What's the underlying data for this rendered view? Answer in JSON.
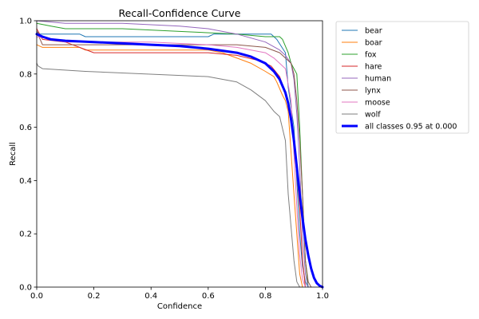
{
  "chart_data": {
    "type": "line",
    "title": "Recall-Confidence Curve",
    "xlabel": "Confidence",
    "ylabel": "Recall",
    "xlim": [
      0.0,
      1.0
    ],
    "ylim": [
      0.0,
      1.0
    ],
    "xticks": [
      "0.0",
      "0.2",
      "0.4",
      "0.6",
      "0.8",
      "1.0"
    ],
    "yticks": [
      "0.0",
      "0.2",
      "0.4",
      "0.6",
      "0.8",
      "1.0"
    ],
    "grid": false,
    "legend_position": "outside-right",
    "series": [
      {
        "name": "bear",
        "color": "#1f77b4",
        "width": 1,
        "x": [
          0,
          0.01,
          0.15,
          0.17,
          0.6,
          0.62,
          0.82,
          0.84,
          0.87,
          0.88,
          0.9,
          0.91,
          0.92,
          0.93,
          0.94,
          0.95
        ],
        "y": [
          0.96,
          0.95,
          0.95,
          0.94,
          0.94,
          0.95,
          0.95,
          0.93,
          0.88,
          0.75,
          0.6,
          0.4,
          0.2,
          0.08,
          0.02,
          0
        ]
      },
      {
        "name": "boar",
        "color": "#ff7f0e",
        "width": 1,
        "x": [
          0,
          0.02,
          0.15,
          0.17,
          0.6,
          0.65,
          0.75,
          0.8,
          0.83,
          0.84,
          0.86,
          0.87,
          0.88,
          0.9,
          0.91,
          0.92,
          0.93
        ],
        "y": [
          0.91,
          0.9,
          0.9,
          0.89,
          0.89,
          0.88,
          0.84,
          0.81,
          0.79,
          0.77,
          0.72,
          0.7,
          0.66,
          0.35,
          0.2,
          0.05,
          0
        ]
      },
      {
        "name": "fox",
        "color": "#2ca02c",
        "width": 1,
        "x": [
          0,
          0.05,
          0.1,
          0.3,
          0.5,
          0.7,
          0.8,
          0.85,
          0.86,
          0.88,
          0.89,
          0.9,
          0.91,
          0.92,
          0.93,
          0.94,
          0.95
        ],
        "y": [
          0.99,
          0.98,
          0.97,
          0.97,
          0.96,
          0.95,
          0.94,
          0.94,
          0.93,
          0.88,
          0.84,
          0.82,
          0.8,
          0.6,
          0.35,
          0.1,
          0
        ]
      },
      {
        "name": "hare",
        "color": "#d62728",
        "width": 1,
        "x": [
          0,
          0.02,
          0.1,
          0.2,
          0.6,
          0.7,
          0.78,
          0.82,
          0.85,
          0.87,
          0.88,
          0.9,
          0.92,
          0.93,
          0.94
        ],
        "y": [
          0.97,
          0.93,
          0.92,
          0.88,
          0.88,
          0.87,
          0.85,
          0.83,
          0.79,
          0.73,
          0.68,
          0.55,
          0.3,
          0.1,
          0
        ]
      },
      {
        "name": "human",
        "color": "#9467bd",
        "width": 1,
        "x": [
          0,
          0.1,
          0.3,
          0.5,
          0.6,
          0.7,
          0.8,
          0.85,
          0.87,
          0.89,
          0.9,
          0.91,
          0.92,
          0.93,
          0.94,
          0.95
        ],
        "y": [
          1.0,
          0.99,
          0.99,
          0.98,
          0.97,
          0.95,
          0.92,
          0.89,
          0.87,
          0.84,
          0.78,
          0.65,
          0.45,
          0.2,
          0.05,
          0
        ]
      },
      {
        "name": "lynx",
        "color": "#8c564b",
        "width": 1,
        "x": [
          0,
          0.02,
          0.15,
          0.5,
          0.7,
          0.8,
          0.85,
          0.87,
          0.89,
          0.9,
          0.91,
          0.92,
          0.93,
          0.94,
          0.95,
          0.96
        ],
        "y": [
          0.96,
          0.91,
          0.91,
          0.91,
          0.91,
          0.9,
          0.88,
          0.86,
          0.84,
          0.8,
          0.7,
          0.55,
          0.35,
          0.1,
          0.02,
          0
        ]
      },
      {
        "name": "moose",
        "color": "#e377c2",
        "width": 1,
        "x": [
          0,
          0.05,
          0.1,
          0.4,
          0.6,
          0.7,
          0.8,
          0.83,
          0.85,
          0.87,
          0.89,
          0.9,
          0.91,
          0.92,
          0.93,
          0.94
        ],
        "y": [
          0.94,
          0.93,
          0.92,
          0.92,
          0.91,
          0.9,
          0.88,
          0.86,
          0.84,
          0.82,
          0.7,
          0.5,
          0.3,
          0.12,
          0.03,
          0
        ]
      },
      {
        "name": "wolf",
        "color": "#7f7f7f",
        "width": 1,
        "x": [
          0,
          0.005,
          0.02,
          0.17,
          0.6,
          0.7,
          0.75,
          0.8,
          0.83,
          0.85,
          0.87,
          0.88,
          0.9,
          0.91,
          0.92
        ],
        "y": [
          0.84,
          0.83,
          0.82,
          0.81,
          0.79,
          0.77,
          0.74,
          0.7,
          0.66,
          0.64,
          0.55,
          0.35,
          0.1,
          0.02,
          0
        ]
      },
      {
        "name": "all classes 0.95 at 0.000",
        "color": "#0000ff",
        "width": 3,
        "x": [
          0,
          0.02,
          0.05,
          0.1,
          0.2,
          0.3,
          0.4,
          0.5,
          0.6,
          0.7,
          0.75,
          0.8,
          0.83,
          0.85,
          0.87,
          0.88,
          0.89,
          0.9,
          0.91,
          0.92,
          0.93,
          0.94,
          0.95,
          0.96,
          0.97,
          0.98,
          0.99,
          1.0
        ],
        "y": [
          0.95,
          0.94,
          0.93,
          0.925,
          0.92,
          0.915,
          0.91,
          0.905,
          0.895,
          0.88,
          0.865,
          0.84,
          0.81,
          0.78,
          0.73,
          0.69,
          0.63,
          0.55,
          0.45,
          0.35,
          0.26,
          0.18,
          0.12,
          0.07,
          0.035,
          0.015,
          0.005,
          0
        ]
      }
    ]
  }
}
